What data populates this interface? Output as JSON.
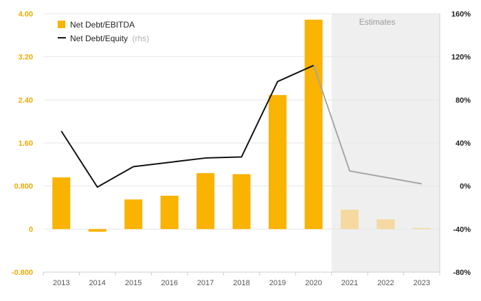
{
  "colors": {
    "bar": "#F9B300",
    "bar_estimate": "#F6D9A0",
    "line": "#111111",
    "line_estimate": "#A6A6A6",
    "left_axis_text": "#F0A800",
    "right_axis_text": "#222222",
    "estimate_band": "#EFEFEF",
    "grid": "#E6E6E6"
  },
  "chart_data": {
    "type": "bar",
    "categories": [
      "2013",
      "2014",
      "2015",
      "2016",
      "2017",
      "2018",
      "2019",
      "2020",
      "2021",
      "2022",
      "2023"
    ],
    "series": [
      {
        "name": "Net Debt/EBITDA",
        "axis": "left",
        "type": "bar",
        "values": [
          0.96,
          -0.05,
          0.55,
          0.62,
          1.04,
          1.02,
          2.49,
          3.89,
          0.36,
          0.18,
          0.02
        ],
        "estimated_from_index": 8
      },
      {
        "name": "Net Debt/Equity",
        "axis_note": "(rhs)",
        "axis": "right",
        "type": "line",
        "values": [
          51,
          -1,
          18,
          22,
          26,
          27,
          97,
          112,
          14,
          8,
          2
        ],
        "estimated_from_index": 8
      }
    ],
    "left_axis": {
      "ylim": [
        -0.8,
        4.0
      ],
      "ticks": [
        4.0,
        3.2,
        2.4,
        1.6,
        0.8,
        0,
        -0.8
      ],
      "tick_labels": [
        "4.00",
        "3.20",
        "2.40",
        "1.60",
        "0.800",
        "0",
        "-0.800"
      ]
    },
    "right_axis": {
      "ylim": [
        -80,
        160
      ],
      "ticks": [
        160,
        120,
        80,
        40,
        0,
        -40,
        -80
      ],
      "tick_labels": [
        "160%",
        "120%",
        "80%",
        "40%",
        "0%",
        "-40%",
        "-80%"
      ]
    },
    "estimate_band": {
      "label": "Estimates",
      "from_index": 8
    },
    "grid": true,
    "legend": {
      "position": "top-left"
    }
  }
}
